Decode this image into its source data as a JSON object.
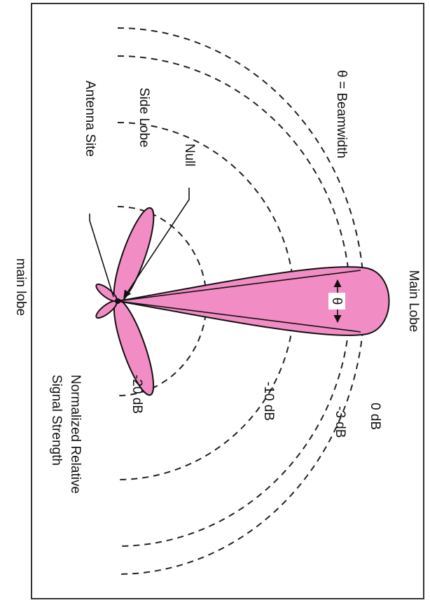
{
  "diagram": {
    "title": "Main Lobe",
    "beamwidth_label": "θ = Beamwidth",
    "theta": "θ",
    "labels": {
      "side_lobe": "Side Lobe",
      "null": "Null",
      "antenna_site": "Antenna Site"
    },
    "levels": [
      "0 dB",
      "-3 dB",
      "-10 dB",
      "-20 dB"
    ],
    "axis_label": [
      "Normalized Relative",
      "Signal Strength"
    ],
    "caption": "main lobe"
  }
}
